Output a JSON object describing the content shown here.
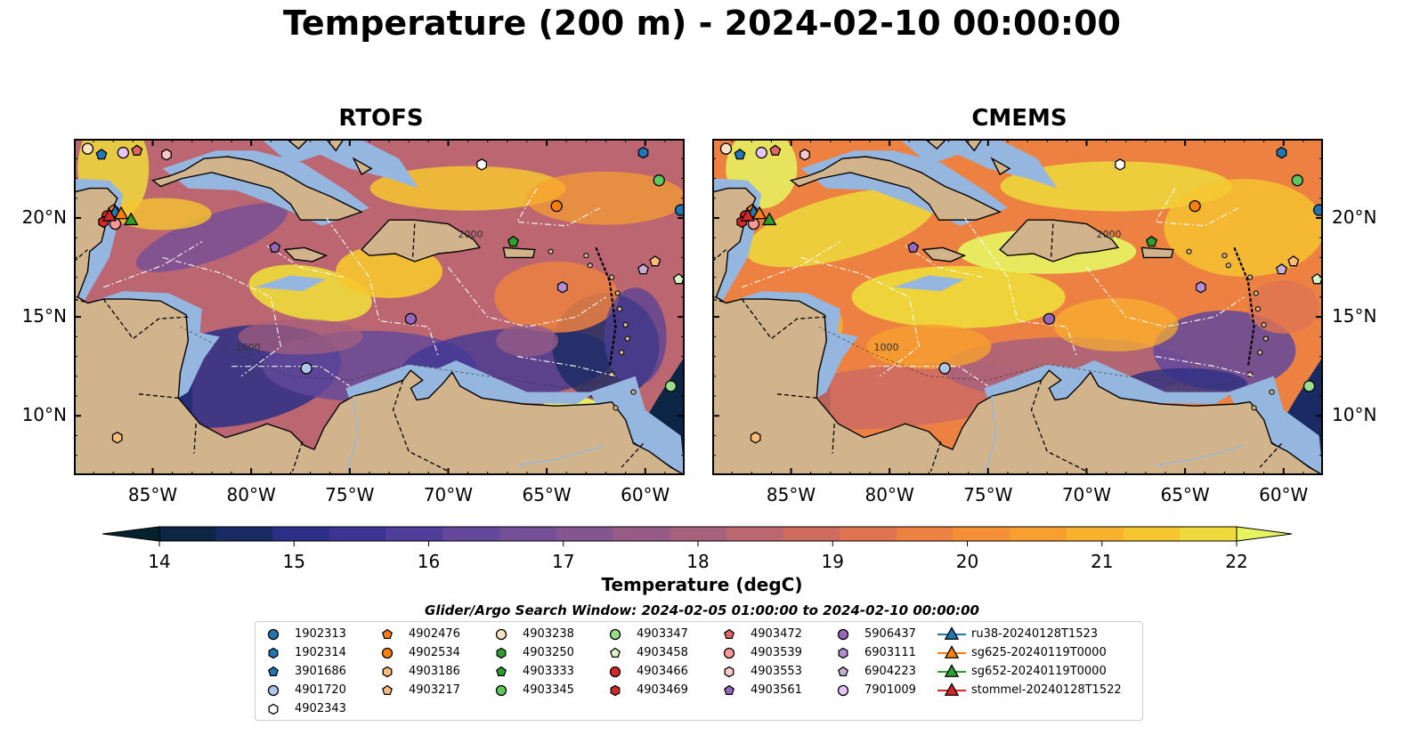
{
  "title": "Temperature (200 m) - 2024-02-10 00:00:00",
  "panels": [
    {
      "name": "RTOFS",
      "variant": "rtofs"
    },
    {
      "name": "CMEMS",
      "variant": "cmems"
    }
  ],
  "lon_ticks": [
    "85°W",
    "80°W",
    "75°W",
    "70°W",
    "65°W",
    "60°W"
  ],
  "lat_ticks": [
    "20°N",
    "15°N",
    "10°N"
  ],
  "contour_labels": [
    "1000",
    "2000"
  ],
  "colorbar": {
    "label": "Temperature (degC)",
    "min": 14,
    "max": 22,
    "step": 0.5,
    "ticks": [
      "14",
      "15",
      "16",
      "17",
      "18",
      "19",
      "20",
      "21",
      "22"
    ],
    "colormap": [
      "#06212f",
      "#0c2544",
      "#1a2b63",
      "#2c2f85",
      "#3c3595",
      "#4f3e9a",
      "#63489b",
      "#744f97",
      "#85558f",
      "#965b87",
      "#a8617d",
      "#bb6671",
      "#ce6c62",
      "#df7452",
      "#ec8142",
      "#f48f35",
      "#f8a02f",
      "#f9b22d",
      "#f6c62f",
      "#eedb3b",
      "#e7f462"
    ]
  },
  "legend": {
    "title": "Glider/Argo Search Window: 2024-02-05 01:00:00 to 2024-02-10 00:00:00",
    "items": [
      {
        "label": "1902313",
        "shape": "circle",
        "color": "#1f77b4"
      },
      {
        "label": "1902314",
        "shape": "hexagon",
        "color": "#1f77b4"
      },
      {
        "label": "3901686",
        "shape": "pentagon",
        "color": "#1f77b4"
      },
      {
        "label": "4901720",
        "shape": "circle",
        "color": "#aec7e8"
      },
      {
        "label": "4902343",
        "shape": "hexagon",
        "color": "#ffffff"
      },
      {
        "label": "4902476",
        "shape": "pentagon",
        "color": "#ff7f0e"
      },
      {
        "label": "4902534",
        "shape": "circle",
        "color": "#ff7f0e"
      },
      {
        "label": "4903186",
        "shape": "hexagon",
        "color": "#ffbb78"
      },
      {
        "label": "4903217",
        "shape": "pentagon",
        "color": "#ffbb78"
      },
      {
        "label": "4903238",
        "shape": "circle",
        "color": "#ffe2c4"
      },
      {
        "label": "4903250",
        "shape": "hexagon",
        "color": "#2ca02c"
      },
      {
        "label": "4903333",
        "shape": "pentagon",
        "color": "#2ca02c"
      },
      {
        "label": "4903345",
        "shape": "circle",
        "color": "#5ec85e"
      },
      {
        "label": "4903347",
        "shape": "circle",
        "color": "#98df8a"
      },
      {
        "label": "4903458",
        "shape": "pentagon",
        "color": "#d7f7c9"
      },
      {
        "label": "4903466",
        "shape": "circle",
        "color": "#d62728"
      },
      {
        "label": "4903469",
        "shape": "hexagon",
        "color": "#d62728"
      },
      {
        "label": "4903472",
        "shape": "pentagon",
        "color": "#e06666"
      },
      {
        "label": "4903539",
        "shape": "circle",
        "color": "#ff9896"
      },
      {
        "label": "4903553",
        "shape": "hexagon",
        "color": "#ffc8c8"
      },
      {
        "label": "4903561",
        "shape": "pentagon",
        "color": "#9467bd"
      },
      {
        "label": "5906437",
        "shape": "circle",
        "color": "#9467bd"
      },
      {
        "label": "6903111",
        "shape": "hexagon",
        "color": "#b48fd8"
      },
      {
        "label": "6904223",
        "shape": "pentagon",
        "color": "#c5b0d5"
      },
      {
        "label": "7901009",
        "shape": "circle",
        "color": "#e7c6f7"
      },
      {
        "label": "ru38-20240128T1523",
        "shape": "triangle",
        "color": "#1f77b4"
      },
      {
        "label": "sg625-20240119T0000",
        "shape": "triangle",
        "color": "#ff7f0e"
      },
      {
        "label": "sg652-20240119T0000",
        "shape": "triangle",
        "color": "#2ca02c"
      },
      {
        "label": "stommel-20240128T1522",
        "shape": "triangle",
        "color": "#d62728"
      }
    ]
  },
  "markers": [
    {
      "id": "1902313",
      "lon": -58.2,
      "lat": 20.4
    },
    {
      "id": "1902314",
      "lon": -60.1,
      "lat": 23.3
    },
    {
      "id": "3901686",
      "lon": -87.6,
      "lat": 23.2
    },
    {
      "id": "4901720",
      "lon": -77.2,
      "lat": 12.4
    },
    {
      "id": "4902343",
      "lon": -68.3,
      "lat": 22.7
    },
    {
      "id": "4902476",
      "lon": -87.0,
      "lat": 20.4
    },
    {
      "id": "4902534",
      "lon": -64.5,
      "lat": 20.6
    },
    {
      "id": "4903186",
      "lon": -86.8,
      "lat": 8.9
    },
    {
      "id": "4903217",
      "lon": -59.5,
      "lat": 17.8
    },
    {
      "id": "4903238",
      "lon": -88.3,
      "lat": 23.5
    },
    {
      "id": "4903250",
      "lon": -87.1,
      "lat": 20.1
    },
    {
      "id": "4903333",
      "lon": -66.7,
      "lat": 18.8
    },
    {
      "id": "4903345",
      "lon": -59.3,
      "lat": 21.9
    },
    {
      "id": "4903347",
      "lon": -58.7,
      "lat": 11.5
    },
    {
      "id": "4903458",
      "lon": -58.3,
      "lat": 16.9
    },
    {
      "id": "4903466",
      "lon": -87.3,
      "lat": 20.1
    },
    {
      "id": "4903469",
      "lon": -87.5,
      "lat": 19.8
    },
    {
      "id": "4903472",
      "lon": -85.8,
      "lat": 23.4
    },
    {
      "id": "4903539",
      "lon": -86.9,
      "lat": 19.7
    },
    {
      "id": "4903553",
      "lon": -84.3,
      "lat": 23.2
    },
    {
      "id": "4903561",
      "lon": -78.8,
      "lat": 18.5
    },
    {
      "id": "5906437",
      "lon": -71.9,
      "lat": 14.9
    },
    {
      "id": "6903111",
      "lon": -64.2,
      "lat": 16.5
    },
    {
      "id": "6904223",
      "lon": -60.1,
      "lat": 17.4
    },
    {
      "id": "7901009",
      "lon": -86.5,
      "lat": 23.3
    },
    {
      "id": "ru38-20240128T1523",
      "lon": -86.9,
      "lat": 20.3
    },
    {
      "id": "sg625-20240119T0000",
      "lon": -86.6,
      "lat": 20.2
    },
    {
      "id": "sg652-20240119T0000",
      "lon": -86.1,
      "lat": 19.9
    },
    {
      "id": "stommel-20240128T1522",
      "lon": -87.2,
      "lat": 20.1
    }
  ]
}
